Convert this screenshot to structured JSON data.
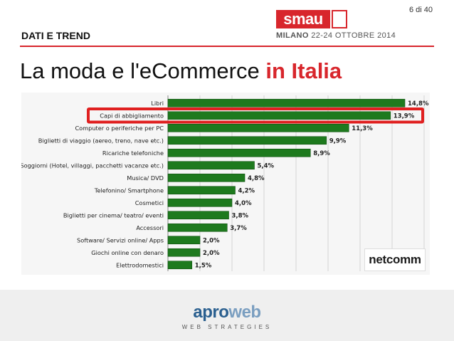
{
  "page": {
    "number": "6 di 40"
  },
  "header": {
    "section": "DATI E TREND",
    "event_logo": "smau",
    "event_city": "MILANO",
    "event_dates": "22-24 OTTOBRE 2014"
  },
  "title": {
    "main": "La moda e l'eCommerce",
    "accent": "in Italia"
  },
  "chart_data": {
    "type": "bar",
    "orientation": "horizontal",
    "categories": [
      "Libri",
      "Capi di abbigliamento",
      "Computer o periferiche per PC",
      "Biglietti di viaggio (aereo, treno, nave etc.)",
      "Ricariche telefoniche",
      "Soggiorni (Hotel, villaggi, pacchetti vacanze etc.)",
      "Musica/ DVD",
      "Telefonino/ Smartphone",
      "Cosmetici",
      "Biglietti per cinema/ teatro/ eventi",
      "Accessori",
      "Software/ Servizi online/ Apps",
      "Giochi online con denaro",
      "Elettrodomestici"
    ],
    "values": [
      14.8,
      13.9,
      11.3,
      9.9,
      8.9,
      5.4,
      4.8,
      4.2,
      4.0,
      3.8,
      3.7,
      2.0,
      2.0,
      1.5
    ],
    "labels": [
      "14,8%",
      "13,9%",
      "11,3%",
      "9,9%",
      "8,9%",
      "5,4%",
      "4,8%",
      "4,2%",
      "4,0%",
      "3,8%",
      "3,7%",
      "2,0%",
      "2,0%",
      "1,5%"
    ],
    "highlight_index": 1,
    "xlim": [
      0,
      16
    ],
    "grid": true,
    "bar_color": "#1e7a1e",
    "highlight_color": "#e02020"
  },
  "source": {
    "logo": "netcomm"
  },
  "footer": {
    "logo_main": "apro",
    "logo_accent": "web",
    "logo_sub": "WEB STRATEGIES"
  }
}
